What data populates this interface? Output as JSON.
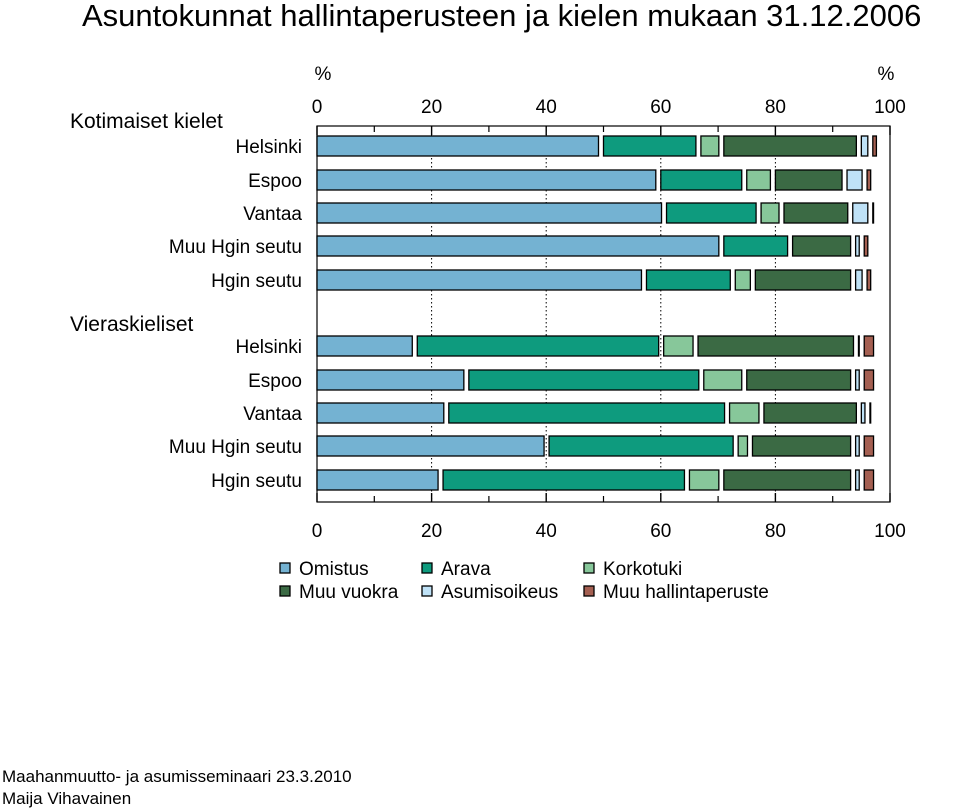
{
  "title": "Asuntokunnat hallintaperusteen ja kielen mukaan 31.12.2006",
  "footer": {
    "line1": "Maahanmuutto- ja asumisseminaari 23.3.2010",
    "line2": "Maija Vihavainen"
  },
  "chart_data": {
    "type": "bar",
    "orientation": "horizontal",
    "stacked": true,
    "unit_left": "%",
    "unit_right": "%",
    "xlim": [
      0,
      100
    ],
    "xticks": [
      "0",
      "20",
      "40",
      "60",
      "80",
      "100"
    ],
    "grid": true,
    "legend_position": "bottom",
    "groups": [
      {
        "label": "Kotimaiset kielet",
        "categories": [
          "Helsinki",
          "Espoo",
          "Vantaa",
          "Muu Hgin seutu",
          "Hgin seutu"
        ]
      },
      {
        "label": "Vieraskieliset",
        "categories": [
          "Helsinki",
          "Espoo",
          "Vantaa",
          "Muu Hgin seutu",
          "Hgin seutu"
        ]
      }
    ],
    "series": [
      {
        "name": "Omistus",
        "color": "#74B2D2",
        "values": [
          50,
          60,
          61,
          71,
          57.5,
          17.5,
          26.5,
          23,
          40.5,
          22
        ]
      },
      {
        "name": "Arava",
        "color": "#0E9B7E",
        "values": [
          17,
          15,
          16.5,
          12,
          15.5,
          43,
          41,
          49,
          33,
          43
        ]
      },
      {
        "name": "Korkotuki",
        "color": "#87C79A",
        "values": [
          4,
          5,
          4,
          0,
          3.5,
          6,
          7.5,
          6,
          2.5,
          6
        ]
      },
      {
        "name": "Muu vuokra",
        "color": "#3B6A44",
        "values": [
          24,
          12.5,
          12,
          11,
          17.5,
          28,
          19,
          17,
          18,
          23
        ]
      },
      {
        "name": "Asumisoikeus",
        "color": "#BFE2F7",
        "values": [
          2,
          3.5,
          3.5,
          1.5,
          2,
          1,
          1.5,
          1.5,
          1.5,
          1.5
        ]
      },
      {
        "name": "Muu hallintaperuste",
        "color": "#A45F51",
        "values": [
          1.5,
          1.5,
          1,
          1.5,
          1.5,
          2.5,
          2.5,
          1,
          2.5,
          2.5
        ]
      }
    ]
  }
}
